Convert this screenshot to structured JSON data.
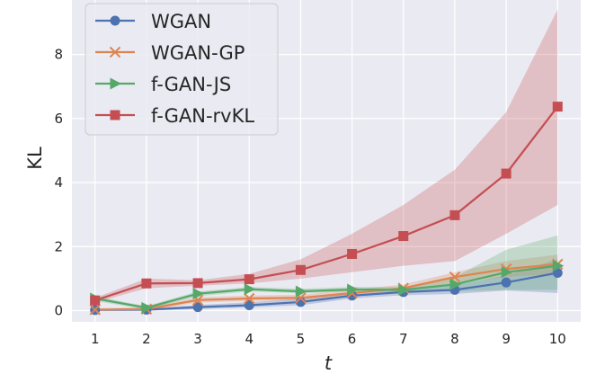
{
  "chart_data": {
    "type": "line",
    "title": "",
    "xlabel": "t",
    "ylabel": "KL",
    "x": [
      1,
      2,
      3,
      4,
      5,
      6,
      7,
      8,
      9,
      10
    ],
    "xticks": [
      "1",
      "2",
      "3",
      "4",
      "5",
      "6",
      "7",
      "8",
      "9",
      "10"
    ],
    "yticks": [
      "0",
      "2",
      "4",
      "6",
      "8"
    ],
    "xlim": [
      0.55,
      10.45
    ],
    "ylim": [
      -0.35,
      9.7
    ],
    "grid": true,
    "legend_position": "top-left",
    "series": [
      {
        "name": "WGAN",
        "color": "#4c72b0",
        "marker": "circle",
        "values": [
          0.02,
          0.03,
          0.11,
          0.17,
          0.27,
          0.47,
          0.58,
          0.65,
          0.88,
          1.18
        ],
        "lower": [
          0.0,
          0.0,
          0.05,
          0.1,
          0.17,
          0.38,
          0.48,
          0.52,
          0.63,
          0.55
        ],
        "upper": [
          0.05,
          0.06,
          0.18,
          0.26,
          0.38,
          0.58,
          0.7,
          0.8,
          1.1,
          1.6
        ]
      },
      {
        "name": "WGAN-GP",
        "color": "#dd8452",
        "marker": "x",
        "values": [
          0.03,
          0.05,
          0.33,
          0.38,
          0.4,
          0.55,
          0.7,
          1.05,
          1.3,
          1.45
        ],
        "lower": [
          0.0,
          0.0,
          0.25,
          0.3,
          0.32,
          0.45,
          0.58,
          0.88,
          1.05,
          1.15
        ],
        "upper": [
          0.08,
          0.1,
          0.42,
          0.47,
          0.5,
          0.65,
          0.82,
          1.2,
          1.55,
          1.75
        ]
      },
      {
        "name": "f-GAN-JS",
        "color": "#55a868",
        "marker": "triangle-right",
        "values": [
          0.38,
          0.09,
          0.53,
          0.67,
          0.6,
          0.66,
          0.65,
          0.82,
          1.2,
          1.4
        ],
        "lower": [
          0.3,
          0.04,
          0.45,
          0.6,
          0.54,
          0.6,
          0.58,
          0.6,
          0.65,
          0.65
        ],
        "upper": [
          0.45,
          0.14,
          0.6,
          0.74,
          0.68,
          0.74,
          0.74,
          1.05,
          1.9,
          2.35
        ]
      },
      {
        "name": "f-GAN-rvKL",
        "color": "#c44e52",
        "marker": "square",
        "values": [
          0.32,
          0.85,
          0.86,
          0.98,
          1.27,
          1.77,
          2.33,
          2.98,
          4.28,
          6.37
        ],
        "lower": [
          0.25,
          0.7,
          0.78,
          0.85,
          1.0,
          1.2,
          1.4,
          1.55,
          2.4,
          3.3
        ],
        "upper": [
          0.4,
          1.0,
          0.95,
          1.15,
          1.6,
          2.4,
          3.3,
          4.4,
          6.2,
          9.4
        ]
      }
    ]
  }
}
